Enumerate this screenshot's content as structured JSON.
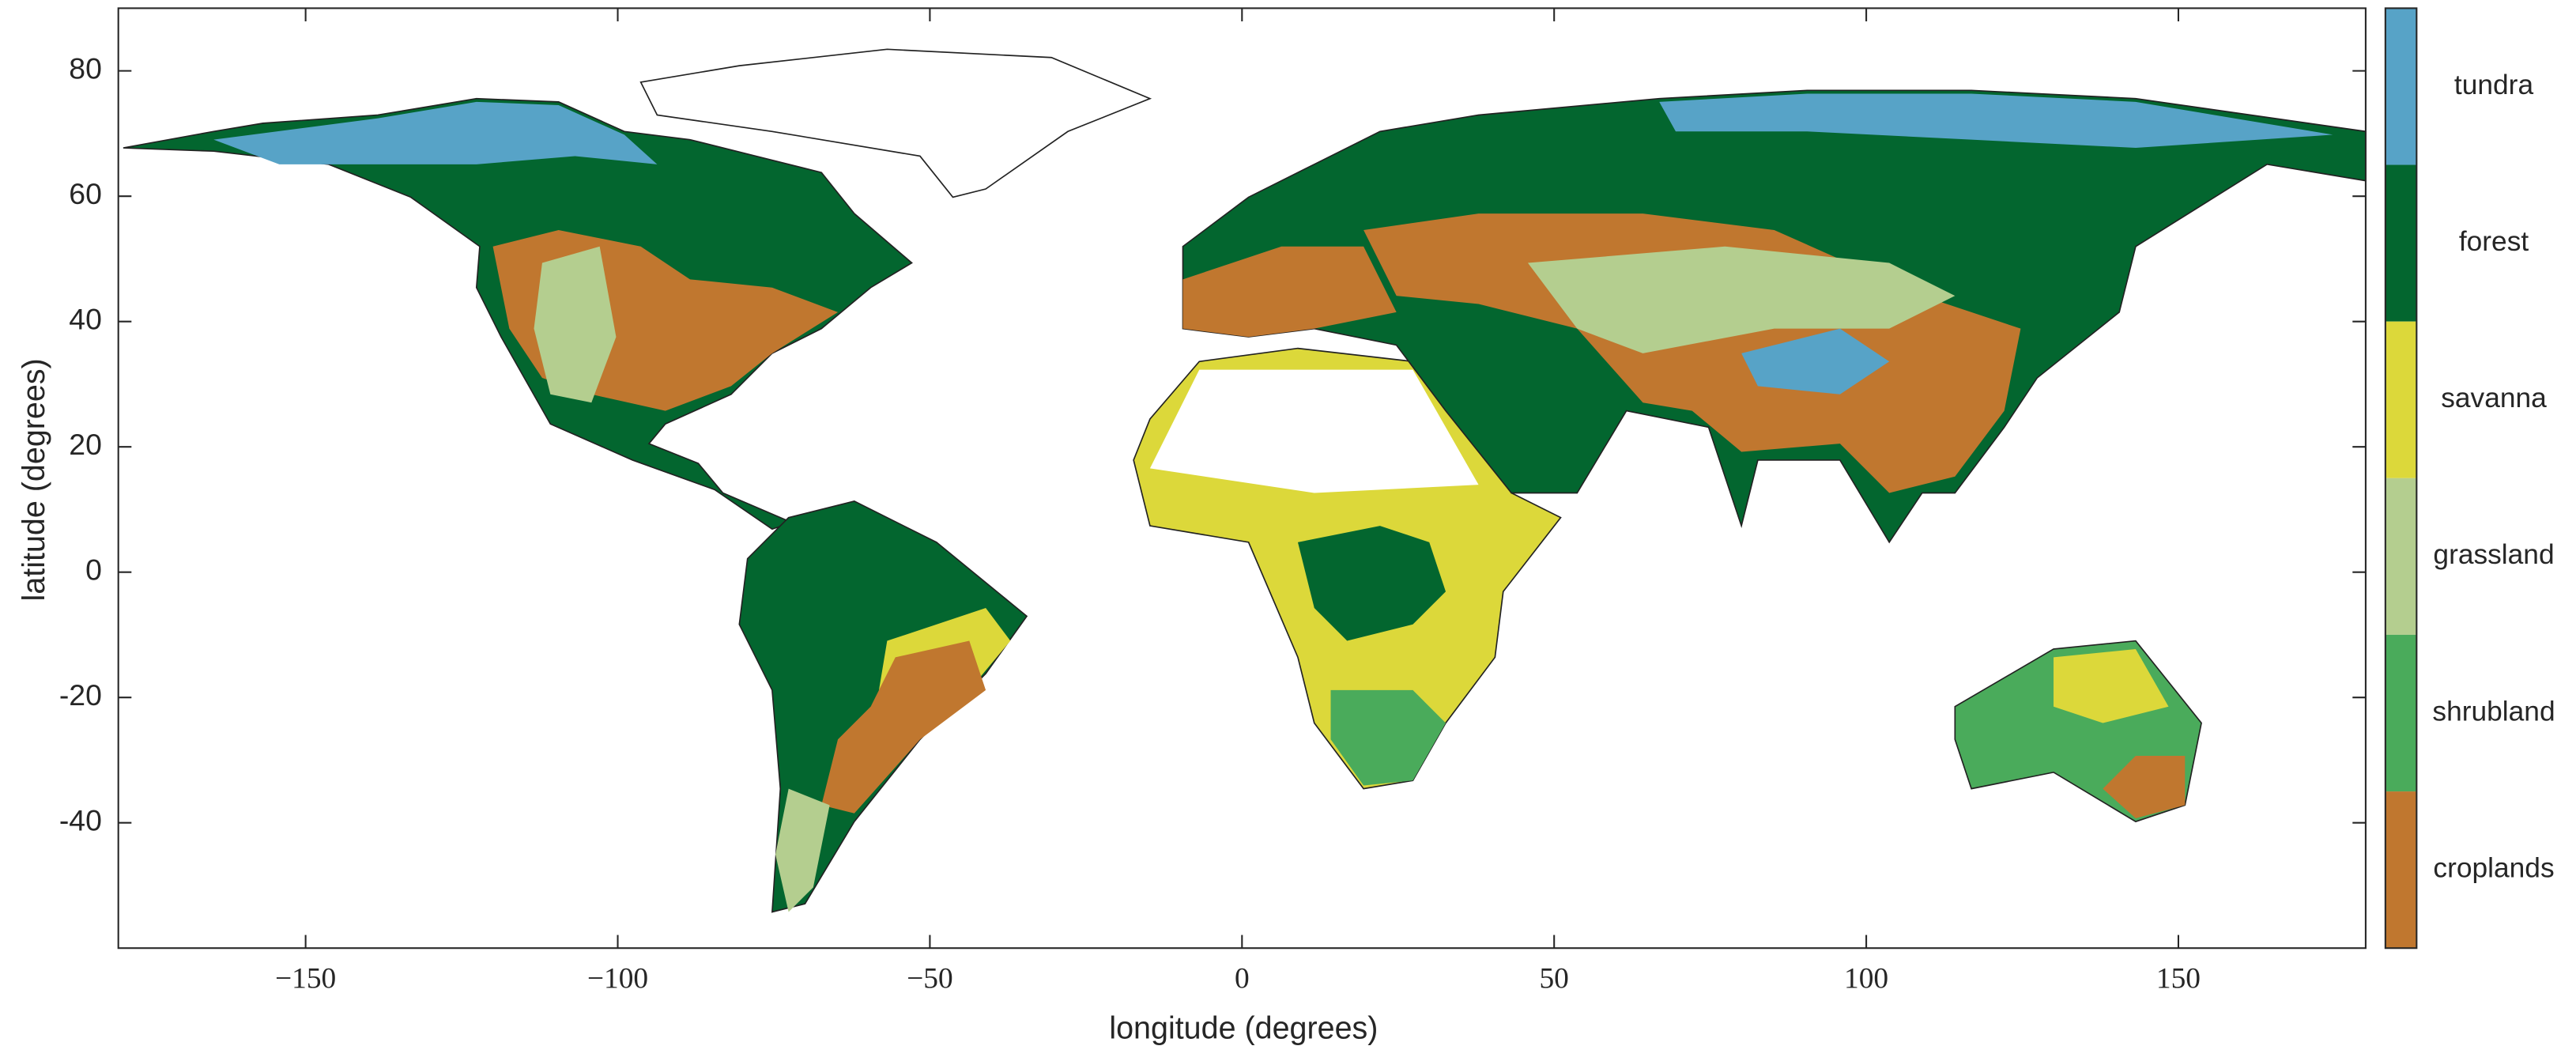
{
  "chart_data": {
    "type": "map",
    "xlabel": "longitude (degrees)",
    "ylabel": "latitude (degrees)",
    "xlim": [
      -180,
      180
    ],
    "ylim": [
      -60,
      90
    ],
    "xticks": [
      {
        "value": -150,
        "label": "−150"
      },
      {
        "value": -100,
        "label": "−100"
      },
      {
        "value": -50,
        "label": "−50"
      },
      0,
      50,
      100,
      150
    ],
    "yticks": [
      80,
      60,
      40,
      20,
      0,
      -20,
      -40
    ],
    "colorbar": {
      "categories": [
        "tundra",
        "forest",
        "savanna",
        "grassland",
        "shrubland",
        "croplands"
      ],
      "colors": [
        "#57a3c7",
        "#03662f",
        "#dcd83a",
        "#b4ce8f",
        "#4aab5b",
        "#c0772f"
      ]
    }
  }
}
